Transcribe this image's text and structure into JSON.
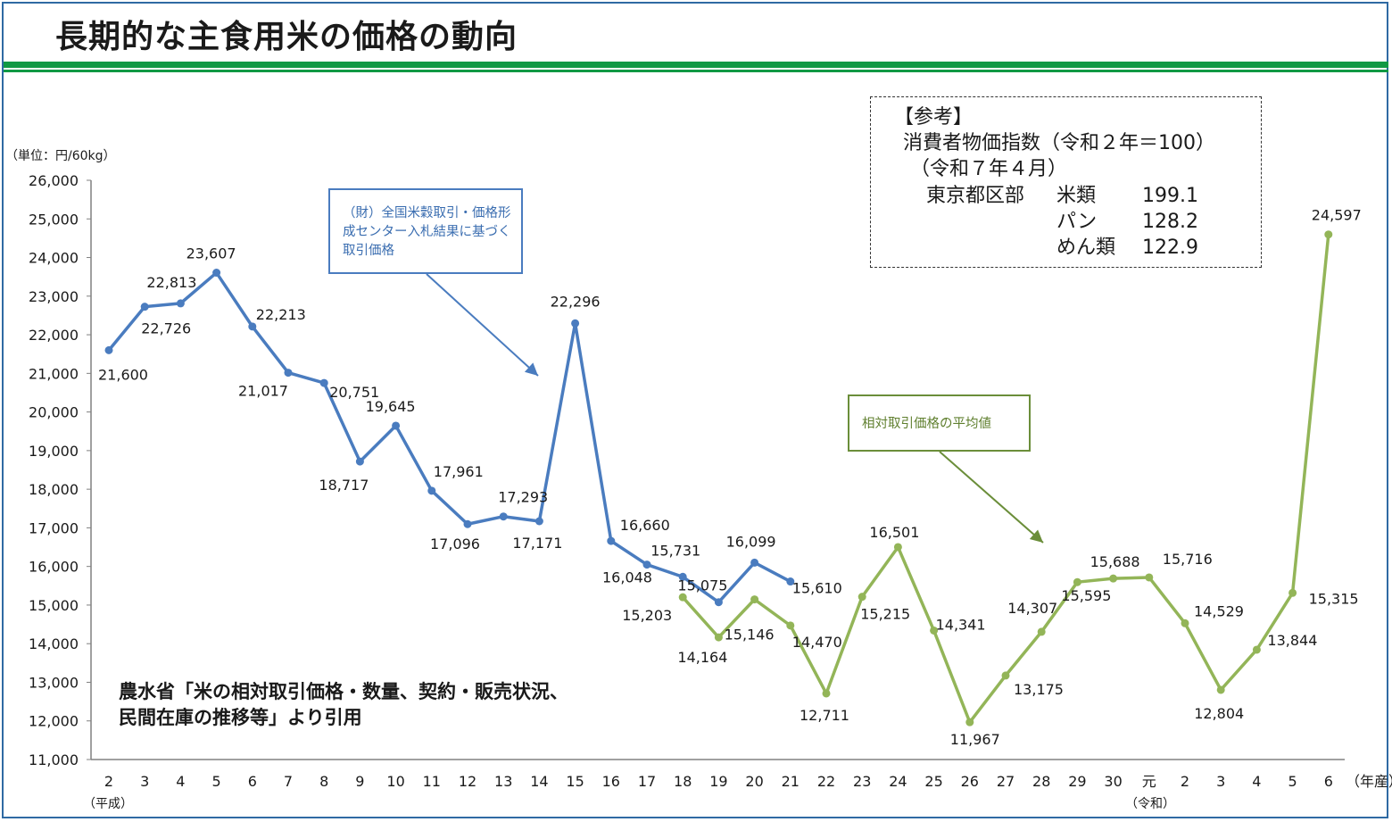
{
  "title": "長期的な主食用米の価格の動向",
  "colors": {
    "blue_series": "#4a7cbf",
    "green_series": "#93b558",
    "header_bar": "#119944",
    "frame": "#2f6aa3"
  },
  "reference_box": {
    "heading": "【参考】",
    "line1": "消費者物価指数（令和２年＝100）",
    "line2": "（令和７年４月）",
    "region": "東京都区部",
    "items": [
      {
        "label": "米類",
        "value": "199.1"
      },
      {
        "label": "パン",
        "value": "128.2"
      },
      {
        "label": "めん類",
        "value": "122.9"
      }
    ]
  },
  "callouts": {
    "zenkoku": "（財）全国米穀取引・価格形成センター入札結果に基づく取引価格",
    "soutai": "相対取引価格の平均値"
  },
  "source_note": "農水省「米の相対取引価格・数量、契約・販売状況、民間在庫の推移等」より引用",
  "chart_data": {
    "type": "line",
    "title": "長期的な主食用米の価格の動向",
    "unit_label": "（単位：円/60kg）",
    "x_unit_label": "（年産）",
    "era_labels": {
      "heisei": "（平成）",
      "reiwa": "（令和）"
    },
    "categories": [
      "2",
      "3",
      "4",
      "5",
      "6",
      "7",
      "8",
      "9",
      "10",
      "11",
      "12",
      "13",
      "14",
      "15",
      "16",
      "17",
      "18",
      "19",
      "20",
      "21",
      "22",
      "23",
      "24",
      "25",
      "26",
      "27",
      "28",
      "29",
      "30",
      "元",
      "2",
      "3",
      "4",
      "5",
      "6"
    ],
    "ylim": [
      11000,
      26000
    ],
    "yticks": [
      "11,000",
      "12,000",
      "13,000",
      "14,000",
      "15,000",
      "16,000",
      "17,000",
      "18,000",
      "19,000",
      "20,000",
      "21,000",
      "22,000",
      "23,000",
      "24,000",
      "25,000",
      "26,000"
    ],
    "grid": false,
    "series": [
      {
        "color": "#4a7cbf",
        "values": [
          21600,
          22726,
          22813,
          23607,
          22213,
          21017,
          20751,
          18717,
          19645,
          17961,
          17096,
          17293,
          17171,
          22296,
          16660,
          16048,
          15731,
          15075,
          16099,
          15610,
          null,
          null,
          null,
          null,
          null,
          null,
          null,
          null,
          null,
          null,
          null,
          null,
          null,
          null,
          null
        ],
        "labels": [
          "21,600",
          "22,726",
          "22,813",
          "23,607",
          "22,213",
          "21,017",
          "20,751",
          "18,717",
          "19,645",
          "17,961",
          "17,096",
          "17,293",
          "17,171",
          "22,296",
          "16,660",
          "16,048",
          "15,731",
          "15,075",
          "16,099",
          "15,610",
          null,
          null,
          null,
          null,
          null,
          null,
          null,
          null,
          null,
          null,
          null,
          null,
          null,
          null,
          null
        ]
      },
      {
        "color": "#93b558",
        "values": [
          null,
          null,
          null,
          null,
          null,
          null,
          null,
          null,
          null,
          null,
          null,
          null,
          null,
          null,
          null,
          null,
          15203,
          14164,
          15146,
          14470,
          12711,
          15215,
          16501,
          14341,
          11967,
          13175,
          14307,
          15595,
          15688,
          15716,
          14529,
          12804,
          13844,
          15315,
          24597
        ],
        "labels": [
          null,
          null,
          null,
          null,
          null,
          null,
          null,
          null,
          null,
          null,
          null,
          null,
          null,
          null,
          null,
          null,
          "15,203",
          "14,164",
          "15,146",
          "14,470",
          "12,711",
          "15,215",
          "16,501",
          "14,341",
          "11,967",
          "13,175",
          "14,307",
          "15,595",
          "15,688",
          "15,716",
          "14,529",
          "12,804",
          "13,844",
          "15,315",
          "24,597"
        ]
      }
    ]
  }
}
